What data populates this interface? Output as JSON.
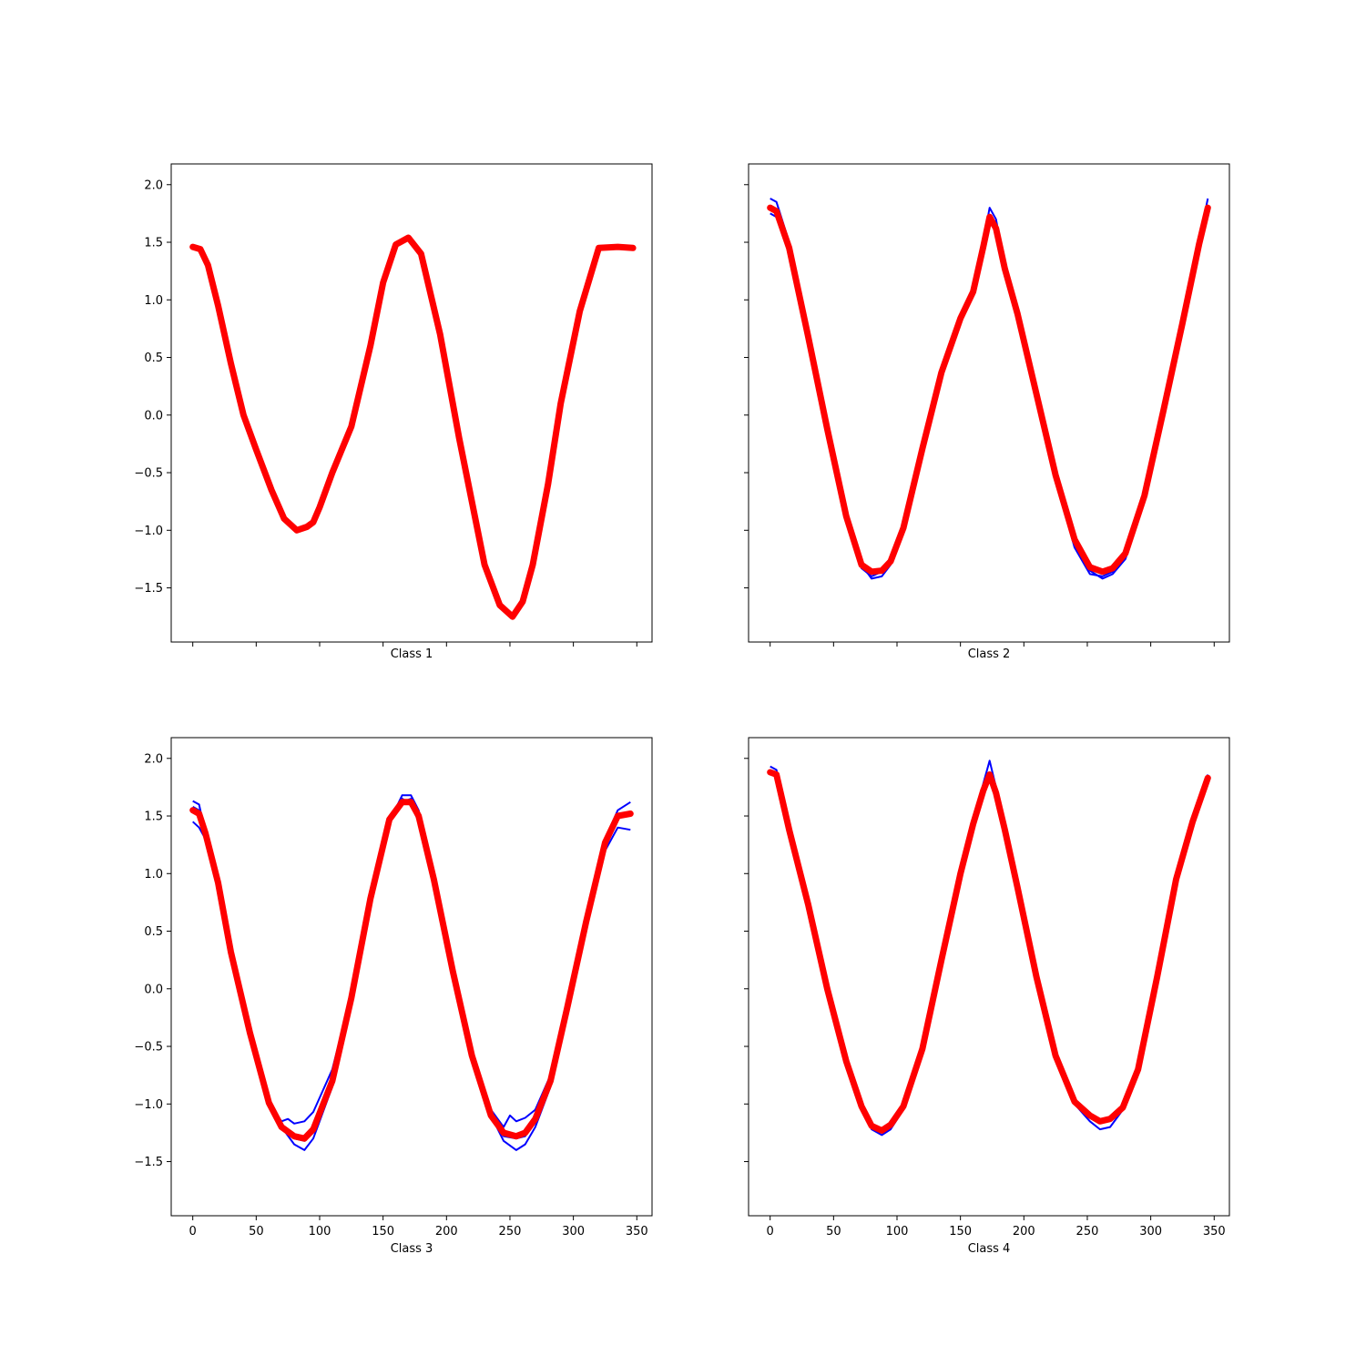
{
  "chart_data": [
    {
      "type": "line",
      "xlabel": "Class 1",
      "xlim": [
        -17,
        362
      ],
      "ylim": [
        -1.97,
        2.18
      ],
      "x_ticks": [
        0,
        50,
        100,
        150,
        200,
        250,
        300,
        350
      ],
      "y_ticks": [
        -1.5,
        -1.0,
        -0.5,
        0.0,
        0.5,
        1.0,
        1.5,
        2.0
      ],
      "show_x_tick_labels": false,
      "show_y_tick_labels": true,
      "colors": {
        "samples": "#0000ff",
        "mean": "#ff0000"
      },
      "samples": [
        {
          "x": [
            0,
            6,
            12,
            20,
            30,
            40,
            50,
            62,
            72,
            82,
            90,
            95,
            100,
            110,
            125,
            140,
            150,
            160,
            170,
            180,
            195,
            210,
            230,
            242,
            252,
            260,
            268,
            280,
            290,
            305,
            320,
            335,
            347
          ],
          "y": [
            1.46,
            1.44,
            1.3,
            0.95,
            0.45,
            0.0,
            -0.3,
            -0.65,
            -0.9,
            -1.0,
            -0.97,
            -0.93,
            -0.8,
            -0.5,
            -0.1,
            0.6,
            1.15,
            1.48,
            1.55,
            1.4,
            0.7,
            -0.2,
            -1.3,
            -1.65,
            -1.75,
            -1.62,
            -1.3,
            -0.6,
            0.1,
            0.9,
            1.45,
            1.46,
            1.45
          ]
        }
      ],
      "mean": {
        "x": [
          0,
          6,
          12,
          20,
          30,
          40,
          50,
          62,
          72,
          82,
          90,
          95,
          100,
          110,
          125,
          140,
          150,
          160,
          170,
          180,
          195,
          210,
          230,
          242,
          252,
          260,
          268,
          280,
          290,
          305,
          320,
          335,
          347
        ],
        "y": [
          1.46,
          1.44,
          1.3,
          0.95,
          0.45,
          0.0,
          -0.3,
          -0.65,
          -0.9,
          -1.0,
          -0.97,
          -0.93,
          -0.8,
          -0.5,
          -0.1,
          0.6,
          1.15,
          1.48,
          1.54,
          1.4,
          0.7,
          -0.2,
          -1.3,
          -1.65,
          -1.75,
          -1.62,
          -1.3,
          -0.6,
          0.1,
          0.9,
          1.45,
          1.46,
          1.45
        ]
      }
    },
    {
      "type": "line",
      "xlabel": "Class 2",
      "xlim": [
        -17,
        362
      ],
      "ylim": [
        -1.97,
        2.18
      ],
      "x_ticks": [
        0,
        50,
        100,
        150,
        200,
        250,
        300,
        350
      ],
      "y_ticks": [
        -1.5,
        -1.0,
        -0.5,
        0.0,
        0.5,
        1.0,
        1.5,
        2.0
      ],
      "show_x_tick_labels": false,
      "show_y_tick_labels": false,
      "colors": {
        "samples": "#0000ff",
        "mean": "#ff0000"
      },
      "samples": [
        {
          "x": [
            0,
            5,
            15,
            30,
            45,
            60,
            72,
            80,
            88,
            95,
            105,
            120,
            135,
            150,
            160,
            168,
            173,
            178,
            185,
            195,
            210,
            225,
            240,
            252,
            262,
            270,
            280,
            295,
            310,
            325,
            338,
            345
          ],
          "y": [
            1.88,
            1.85,
            1.5,
            0.7,
            -0.1,
            -0.85,
            -1.3,
            -1.42,
            -1.4,
            -1.3,
            -1.0,
            -0.3,
            0.35,
            0.85,
            1.1,
            1.5,
            1.8,
            1.7,
            1.3,
            0.9,
            0.2,
            -0.5,
            -1.05,
            -1.35,
            -1.42,
            -1.38,
            -1.25,
            -0.75,
            0.0,
            0.8,
            1.5,
            1.88
          ]
        },
        {
          "x": [
            0,
            5,
            15,
            30,
            45,
            60,
            72,
            80,
            88,
            95,
            105,
            120,
            135,
            150,
            160,
            168,
            173,
            178,
            185,
            195,
            210,
            225,
            240,
            252,
            262,
            270,
            280,
            295,
            310,
            325,
            338,
            345
          ],
          "y": [
            1.8,
            1.76,
            1.45,
            0.68,
            -0.12,
            -0.88,
            -1.28,
            -1.36,
            -1.35,
            -1.28,
            -0.98,
            -0.3,
            0.36,
            0.82,
            1.05,
            1.45,
            1.74,
            1.62,
            1.28,
            0.88,
            0.2,
            -0.52,
            -1.1,
            -1.32,
            -1.36,
            -1.33,
            -1.2,
            -0.7,
            0.05,
            0.82,
            1.5,
            1.8
          ]
        },
        {
          "x": [
            0,
            5,
            15,
            30,
            45,
            60,
            72,
            80,
            88,
            95,
            105,
            120,
            135,
            150,
            160,
            168,
            173,
            178,
            185,
            195,
            210,
            225,
            240,
            252,
            262,
            270,
            280,
            295,
            310,
            325,
            338,
            345
          ],
          "y": [
            1.75,
            1.72,
            1.42,
            0.66,
            -0.15,
            -0.92,
            -1.33,
            -1.4,
            -1.36,
            -1.26,
            -0.96,
            -0.28,
            0.38,
            0.86,
            1.08,
            1.46,
            1.7,
            1.6,
            1.25,
            0.86,
            0.16,
            -0.56,
            -1.15,
            -1.38,
            -1.4,
            -1.36,
            -1.22,
            -0.72,
            0.02,
            0.78,
            1.45,
            1.78
          ]
        }
      ],
      "mean": {
        "x": [
          0,
          5,
          15,
          30,
          45,
          60,
          72,
          80,
          88,
          95,
          105,
          120,
          135,
          150,
          160,
          168,
          173,
          178,
          185,
          195,
          210,
          225,
          240,
          252,
          262,
          270,
          280,
          295,
          310,
          325,
          338,
          345
        ],
        "y": [
          1.8,
          1.77,
          1.45,
          0.68,
          -0.12,
          -0.88,
          -1.3,
          -1.36,
          -1.35,
          -1.27,
          -0.98,
          -0.29,
          0.37,
          0.84,
          1.07,
          1.46,
          1.72,
          1.62,
          1.27,
          0.88,
          0.18,
          -0.52,
          -1.08,
          -1.32,
          -1.36,
          -1.33,
          -1.2,
          -0.7,
          0.04,
          0.8,
          1.48,
          1.8
        ]
      }
    },
    {
      "type": "line",
      "xlabel": "Class 3",
      "xlim": [
        -17,
        362
      ],
      "ylim": [
        -1.97,
        2.18
      ],
      "x_ticks": [
        0,
        50,
        100,
        150,
        200,
        250,
        300,
        350
      ],
      "y_ticks": [
        -1.5,
        -1.0,
        -0.5,
        0.0,
        0.5,
        1.0,
        1.5,
        2.0
      ],
      "show_x_tick_labels": true,
      "show_y_tick_labels": true,
      "colors": {
        "samples": "#0000ff",
        "mean": "#ff0000"
      },
      "samples": [
        {
          "x": [
            0,
            5,
            10,
            20,
            30,
            45,
            60,
            70,
            80,
            88,
            95,
            110,
            125,
            140,
            155,
            165,
            172,
            178,
            190,
            205,
            220,
            235,
            245,
            255,
            262,
            270,
            282,
            295,
            310,
            325,
            335,
            345
          ],
          "y": [
            1.63,
            1.6,
            1.35,
            0.9,
            0.3,
            -0.4,
            -1.0,
            -1.2,
            -1.35,
            -1.4,
            -1.3,
            -0.85,
            -0.1,
            0.75,
            1.45,
            1.68,
            1.68,
            1.55,
            1.0,
            0.2,
            -0.55,
            -1.1,
            -1.32,
            -1.4,
            -1.35,
            -1.2,
            -0.85,
            -0.2,
            0.6,
            1.3,
            1.55,
            1.62
          ]
        },
        {
          "x": [
            0,
            5,
            10,
            20,
            30,
            45,
            60,
            70,
            75,
            80,
            88,
            95,
            110,
            125,
            140,
            155,
            165,
            172,
            178,
            190,
            205,
            220,
            235,
            245,
            250,
            255,
            262,
            270,
            282,
            295,
            310,
            325,
            335,
            345
          ],
          "y": [
            1.45,
            1.4,
            1.3,
            0.95,
            0.35,
            -0.35,
            -1.0,
            -1.15,
            -1.13,
            -1.17,
            -1.15,
            -1.07,
            -0.7,
            -0.05,
            0.8,
            1.5,
            1.65,
            1.6,
            1.45,
            0.9,
            0.1,
            -0.6,
            -1.05,
            -1.2,
            -1.1,
            -1.15,
            -1.12,
            -1.05,
            -0.75,
            -0.15,
            0.55,
            1.2,
            1.4,
            1.38
          ]
        },
        {
          "x": [
            0,
            5,
            10,
            20,
            30,
            45,
            60,
            70,
            80,
            88,
            95,
            110,
            125,
            140,
            155,
            165,
            172,
            178,
            190,
            205,
            220,
            235,
            245,
            255,
            262,
            270,
            282,
            295,
            310,
            325,
            335,
            345
          ],
          "y": [
            1.58,
            1.55,
            1.38,
            0.92,
            0.32,
            -0.38,
            -0.98,
            -1.22,
            -1.3,
            -1.32,
            -1.25,
            -0.82,
            -0.08,
            0.78,
            1.48,
            1.62,
            1.65,
            1.5,
            0.95,
            0.15,
            -0.6,
            -1.12,
            -1.28,
            -1.3,
            -1.28,
            -1.15,
            -0.8,
            -0.15,
            0.62,
            1.3,
            1.5,
            1.52
          ]
        }
      ],
      "mean": {
        "x": [
          0,
          5,
          10,
          20,
          30,
          45,
          60,
          70,
          80,
          88,
          95,
          110,
          125,
          140,
          155,
          165,
          172,
          178,
          190,
          205,
          220,
          235,
          245,
          255,
          262,
          270,
          282,
          295,
          310,
          325,
          335,
          345
        ],
        "y": [
          1.55,
          1.52,
          1.35,
          0.92,
          0.32,
          -0.38,
          -0.99,
          -1.2,
          -1.28,
          -1.3,
          -1.22,
          -0.8,
          -0.08,
          0.78,
          1.47,
          1.62,
          1.62,
          1.5,
          0.95,
          0.15,
          -0.58,
          -1.1,
          -1.25,
          -1.28,
          -1.25,
          -1.13,
          -0.8,
          -0.17,
          0.58,
          1.27,
          1.5,
          1.52
        ]
      }
    },
    {
      "type": "line",
      "xlabel": "Class 4",
      "xlim": [
        -17,
        362
      ],
      "ylim": [
        -1.97,
        2.18
      ],
      "x_ticks": [
        0,
        50,
        100,
        150,
        200,
        250,
        300,
        350
      ],
      "y_ticks": [
        -1.5,
        -1.0,
        -0.5,
        0.0,
        0.5,
        1.0,
        1.5,
        2.0
      ],
      "show_x_tick_labels": true,
      "show_y_tick_labels": false,
      "colors": {
        "samples": "#0000ff",
        "mean": "#ff0000"
      },
      "samples": [
        {
          "x": [
            0,
            5,
            15,
            30,
            45,
            60,
            72,
            80,
            88,
            95,
            105,
            120,
            135,
            150,
            160,
            168,
            173,
            178,
            185,
            195,
            210,
            225,
            240,
            252,
            260,
            268,
            278,
            290,
            305,
            320,
            333,
            345
          ],
          "y": [
            1.93,
            1.9,
            1.4,
            0.75,
            0.0,
            -0.65,
            -1.05,
            -1.22,
            -1.27,
            -1.22,
            -1.05,
            -0.55,
            0.25,
            1.0,
            1.45,
            1.78,
            1.98,
            1.75,
            1.4,
            0.9,
            0.1,
            -0.6,
            -1.0,
            -1.15,
            -1.22,
            -1.2,
            -1.05,
            -0.7,
            0.1,
            0.95,
            1.45,
            1.86
          ]
        }
      ],
      "mean": {
        "x": [
          0,
          5,
          15,
          30,
          45,
          60,
          72,
          80,
          88,
          95,
          105,
          120,
          135,
          150,
          160,
          168,
          173,
          178,
          185,
          195,
          210,
          225,
          240,
          252,
          260,
          268,
          278,
          290,
          305,
          320,
          333,
          345
        ],
        "y": [
          1.88,
          1.86,
          1.38,
          0.73,
          0.0,
          -0.63,
          -1.02,
          -1.19,
          -1.23,
          -1.18,
          -1.02,
          -0.52,
          0.25,
          1.0,
          1.43,
          1.72,
          1.86,
          1.7,
          1.38,
          0.88,
          0.1,
          -0.58,
          -0.98,
          -1.1,
          -1.15,
          -1.13,
          -1.03,
          -0.7,
          0.1,
          0.95,
          1.45,
          1.83
        ]
      }
    }
  ]
}
